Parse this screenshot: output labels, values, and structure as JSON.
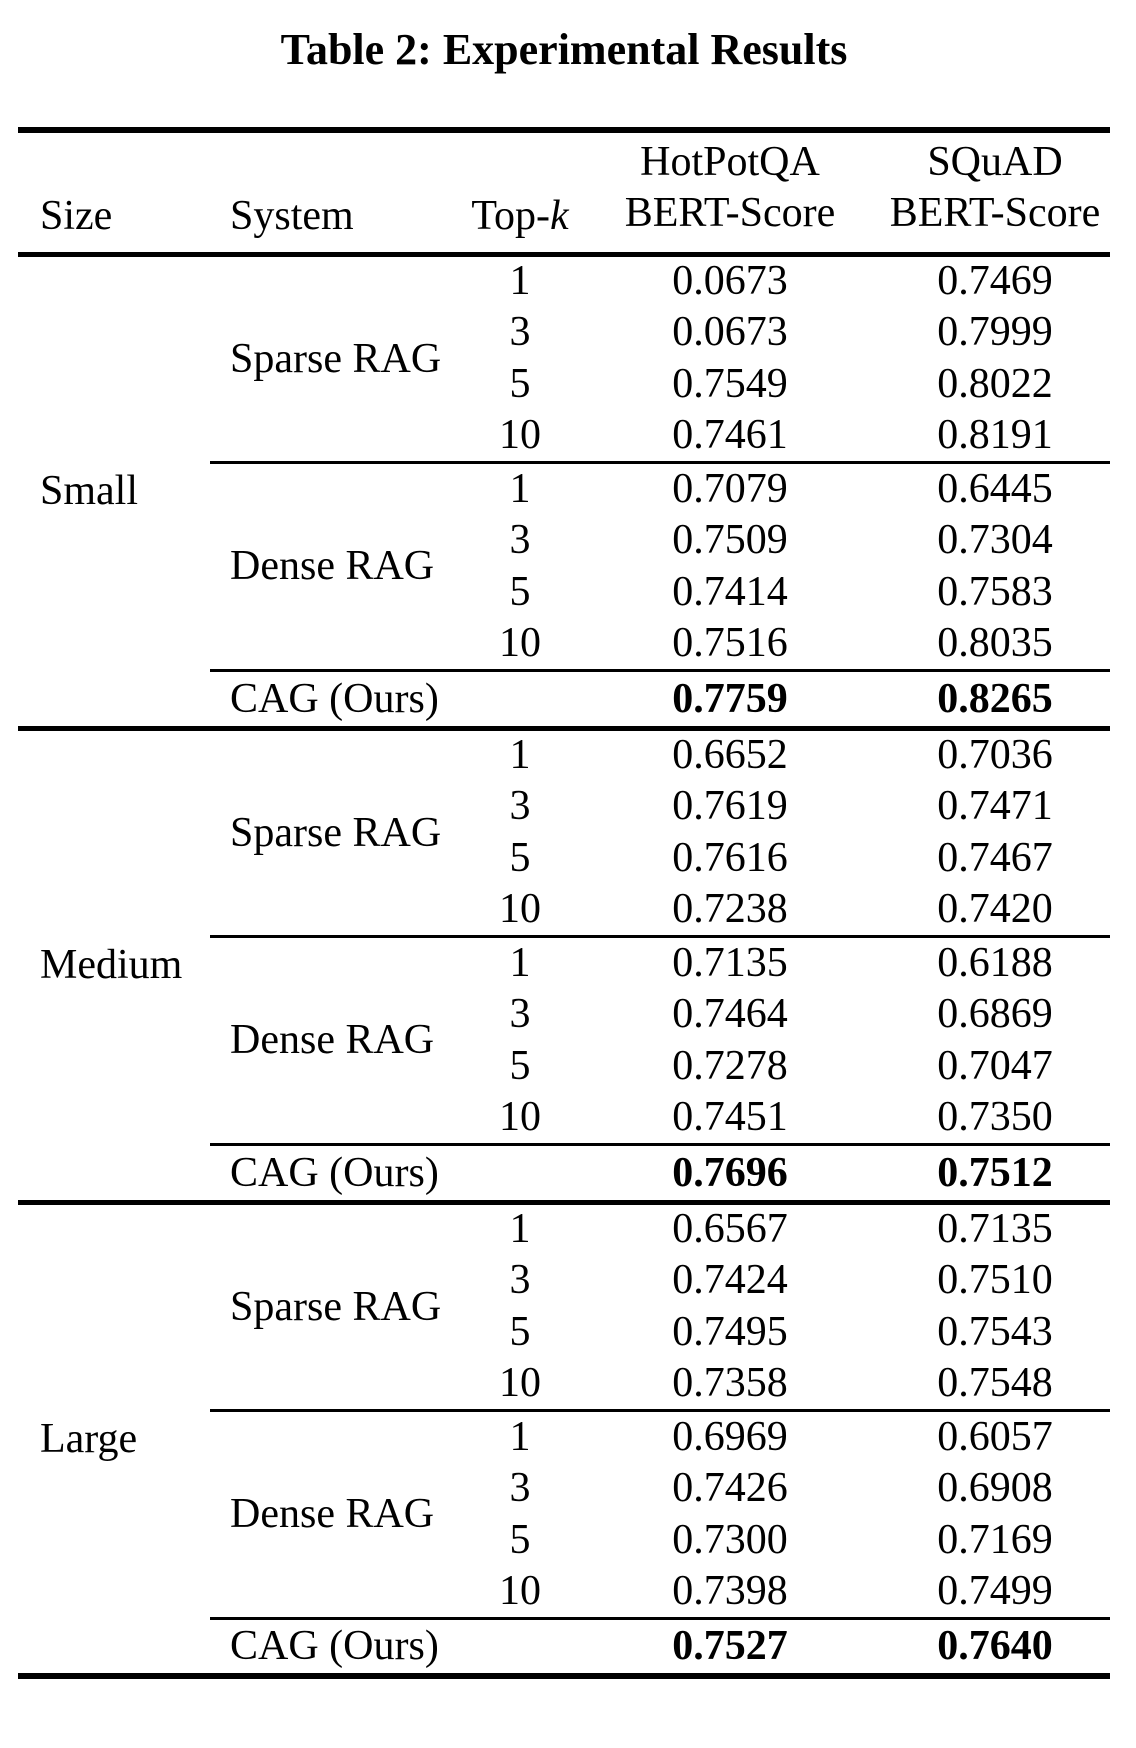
{
  "page": {
    "background": "#ffffff",
    "text_color": "#000000"
  },
  "title": "Table 2: Experimental Results",
  "table": {
    "header": {
      "size": "Size",
      "system": "System",
      "topk_prefix": "Top-",
      "topk_k": "k",
      "hotpotqa_line1": "HotPotQA",
      "hotpotqa_line2": "BERT-Score",
      "squad_line1": "SQuAD",
      "squad_line2": "BERT-Score"
    },
    "groups": [
      {
        "size": "Small",
        "systems": [
          {
            "name": "Sparse RAG",
            "rows": [
              [
                "1",
                "0.0673",
                "0.7469"
              ],
              [
                "3",
                "0.0673",
                "0.7999"
              ],
              [
                "5",
                "0.7549",
                "0.8022"
              ],
              [
                "10",
                "0.7461",
                "0.8191"
              ]
            ]
          },
          {
            "name": "Dense RAG",
            "rows": [
              [
                "1",
                "0.7079",
                "0.6445"
              ],
              [
                "3",
                "0.7509",
                "0.7304"
              ],
              [
                "5",
                "0.7414",
                "0.7583"
              ],
              [
                "10",
                "0.7516",
                "0.8035"
              ]
            ]
          }
        ],
        "cag": {
          "name": "CAG (Ours)",
          "hotpotqa": "0.7759",
          "squad": "0.8265"
        }
      },
      {
        "size": "Medium",
        "systems": [
          {
            "name": "Sparse RAG",
            "rows": [
              [
                "1",
                "0.6652",
                "0.7036"
              ],
              [
                "3",
                "0.7619",
                "0.7471"
              ],
              [
                "5",
                "0.7616",
                "0.7467"
              ],
              [
                "10",
                "0.7238",
                "0.7420"
              ]
            ]
          },
          {
            "name": "Dense RAG",
            "rows": [
              [
                "1",
                "0.7135",
                "0.6188"
              ],
              [
                "3",
                "0.7464",
                "0.6869"
              ],
              [
                "5",
                "0.7278",
                "0.7047"
              ],
              [
                "10",
                "0.7451",
                "0.7350"
              ]
            ]
          }
        ],
        "cag": {
          "name": "CAG (Ours)",
          "hotpotqa": "0.7696",
          "squad": "0.7512"
        }
      },
      {
        "size": "Large",
        "systems": [
          {
            "name": "Sparse RAG",
            "rows": [
              [
                "1",
                "0.6567",
                "0.7135"
              ],
              [
                "3",
                "0.7424",
                "0.7510"
              ],
              [
                "5",
                "0.7495",
                "0.7543"
              ],
              [
                "10",
                "0.7358",
                "0.7548"
              ]
            ]
          },
          {
            "name": "Dense RAG",
            "rows": [
              [
                "1",
                "0.6969",
                "0.6057"
              ],
              [
                "3",
                "0.7426",
                "0.6908"
              ],
              [
                "5",
                "0.7300",
                "0.7169"
              ],
              [
                "10",
                "0.7398",
                "0.7499"
              ]
            ]
          }
        ],
        "cag": {
          "name": "CAG (Ours)",
          "hotpotqa": "0.7527",
          "squad": "0.7640"
        }
      }
    ]
  }
}
